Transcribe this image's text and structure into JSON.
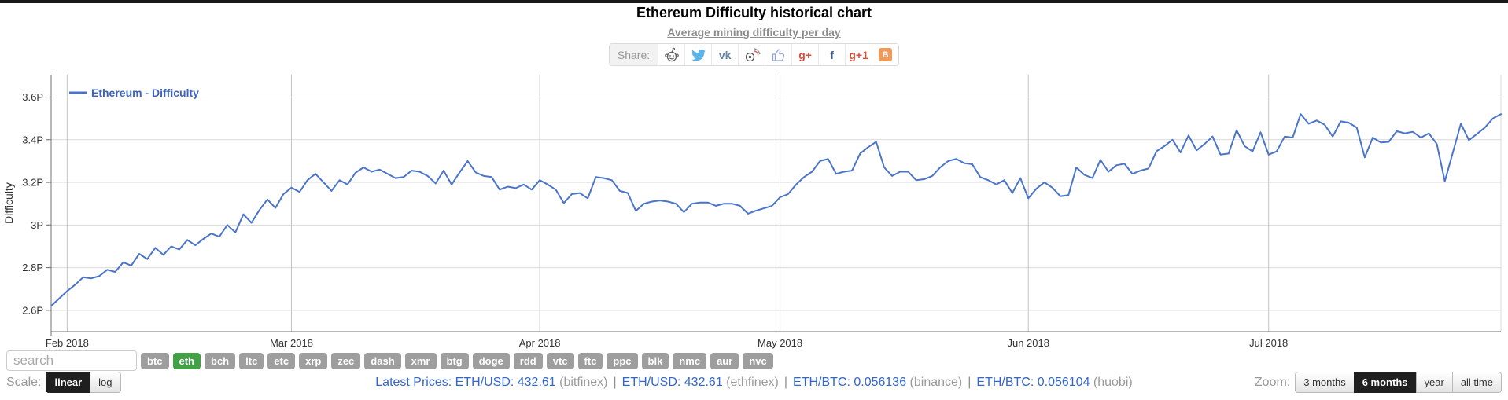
{
  "page": {
    "top_strip_color": "#181818",
    "background": "#ffffff"
  },
  "header": {
    "title": "Ethereum Difficulty historical chart",
    "subtitle": "Average mining difficulty per day"
  },
  "share": {
    "label": "Share:",
    "buttons": [
      {
        "id": "reddit",
        "type": "svg"
      },
      {
        "id": "twitter",
        "type": "svg"
      },
      {
        "id": "vk",
        "type": "text",
        "glyph": "vk",
        "color": "#6383a8"
      },
      {
        "id": "weibo",
        "type": "svg"
      },
      {
        "id": "like",
        "type": "svg"
      },
      {
        "id": "google-plus",
        "type": "text",
        "glyph": "g+",
        "color": "#dd4b39"
      },
      {
        "id": "facebook",
        "type": "text",
        "glyph": "f",
        "color": "#3b5998"
      },
      {
        "id": "google-plus-one",
        "type": "text",
        "glyph": "g+1",
        "color": "#dd4b39"
      },
      {
        "id": "blogger",
        "type": "badge",
        "glyph": "B",
        "color": "#ffffff",
        "bg": "#f09a58"
      }
    ]
  },
  "chart": {
    "legend_label": "Ethereum - Difficulty",
    "line_color": "#4a74c9",
    "legend_color": "#3b63c4",
    "grid_color": "#d9d9d9",
    "month_grid_color": "#c3c3c3",
    "axis_color": "#707070",
    "tick_label_color": "#333333"
  },
  "chart_data": {
    "type": "line",
    "title": "Ethereum Difficulty historical chart",
    "subtitle": "Average mining difficulty per day",
    "xlabel": "",
    "ylabel": "Difficulty",
    "ylim": [
      2.5,
      3.705
    ],
    "yticks": [
      2.6,
      2.8,
      3.0,
      3.2,
      3.4,
      3.6
    ],
    "y_tick_labels": [
      "2.6P",
      "2.8P",
      "3P",
      "3.2P",
      "3.4P",
      "3.6P"
    ],
    "x_unit": "day",
    "x_start_date": "2018-01-30",
    "x_ticks": [
      {
        "index": 2,
        "label": "Feb 2018"
      },
      {
        "index": 30,
        "label": "Mar 2018"
      },
      {
        "index": 61,
        "label": "Apr 2018"
      },
      {
        "index": 91,
        "label": "May 2018"
      },
      {
        "index": 122,
        "label": "Jun 2018"
      },
      {
        "index": 152,
        "label": "Jul 2018"
      }
    ],
    "legend_position": "top-left",
    "grid": true,
    "series": [
      {
        "name": "Ethereum - Difficulty",
        "unit": "P",
        "values": [
          2.62,
          2.655,
          2.69,
          2.72,
          2.755,
          2.75,
          2.76,
          2.79,
          2.78,
          2.825,
          2.81,
          2.865,
          2.84,
          2.893,
          2.86,
          2.9,
          2.885,
          2.93,
          2.905,
          2.935,
          2.96,
          2.945,
          3.0,
          2.965,
          3.05,
          3.01,
          3.07,
          3.12,
          3.08,
          3.145,
          3.175,
          3.155,
          3.21,
          3.24,
          3.2,
          3.16,
          3.21,
          3.19,
          3.245,
          3.27,
          3.25,
          3.26,
          3.24,
          3.22,
          3.225,
          3.255,
          3.25,
          3.23,
          3.195,
          3.255,
          3.19,
          3.247,
          3.3,
          3.247,
          3.23,
          3.225,
          3.166,
          3.18,
          3.173,
          3.19,
          3.166,
          3.21,
          3.19,
          3.166,
          3.103,
          3.145,
          3.15,
          3.125,
          3.225,
          3.22,
          3.21,
          3.16,
          3.15,
          3.066,
          3.1,
          3.11,
          3.115,
          3.11,
          3.1,
          3.06,
          3.1,
          3.105,
          3.105,
          3.09,
          3.1,
          3.1,
          3.09,
          3.053,
          3.067,
          3.078,
          3.09,
          3.13,
          3.145,
          3.19,
          3.225,
          3.25,
          3.3,
          3.31,
          3.24,
          3.25,
          3.255,
          3.335,
          3.365,
          3.39,
          3.27,
          3.23,
          3.25,
          3.25,
          3.21,
          3.215,
          3.23,
          3.27,
          3.3,
          3.31,
          3.29,
          3.285,
          3.225,
          3.21,
          3.19,
          3.21,
          3.15,
          3.22,
          3.125,
          3.17,
          3.2,
          3.175,
          3.135,
          3.14,
          3.27,
          3.235,
          3.22,
          3.305,
          3.25,
          3.28,
          3.287,
          3.24,
          3.255,
          3.265,
          3.346,
          3.37,
          3.4,
          3.34,
          3.42,
          3.35,
          3.38,
          3.415,
          3.33,
          3.335,
          3.445,
          3.37,
          3.345,
          3.435,
          3.33,
          3.345,
          3.415,
          3.41,
          3.52,
          3.475,
          3.49,
          3.47,
          3.415,
          3.486,
          3.48,
          3.457,
          3.317,
          3.41,
          3.387,
          3.39,
          3.44,
          3.43,
          3.437,
          3.41,
          3.43,
          3.38,
          3.205,
          3.34,
          3.475,
          3.398,
          3.427,
          3.457,
          3.5,
          3.52
        ]
      }
    ]
  },
  "coin_filter": {
    "search_placeholder": "search",
    "tag_color": "#9e9e9e",
    "selected_color": "#43a047",
    "tags": [
      {
        "label": "btc",
        "selected": false
      },
      {
        "label": "eth",
        "selected": true
      },
      {
        "label": "bch",
        "selected": false
      },
      {
        "label": "ltc",
        "selected": false
      },
      {
        "label": "etc",
        "selected": false
      },
      {
        "label": "xrp",
        "selected": false
      },
      {
        "label": "zec",
        "selected": false
      },
      {
        "label": "dash",
        "selected": false
      },
      {
        "label": "xmr",
        "selected": false
      },
      {
        "label": "btg",
        "selected": false
      },
      {
        "label": "doge",
        "selected": false
      },
      {
        "label": "rdd",
        "selected": false
      },
      {
        "label": "vtc",
        "selected": false
      },
      {
        "label": "ftc",
        "selected": false
      },
      {
        "label": "ppc",
        "selected": false
      },
      {
        "label": "blk",
        "selected": false
      },
      {
        "label": "nmc",
        "selected": false
      },
      {
        "label": "aur",
        "selected": false
      },
      {
        "label": "nvc",
        "selected": false
      }
    ]
  },
  "scale_control": {
    "label": "Scale:",
    "options": [
      {
        "label": "linear",
        "selected": true
      },
      {
        "label": "log",
        "selected": false
      }
    ]
  },
  "latest_prices": {
    "label": "Latest Prices:",
    "separator": "|",
    "items": [
      {
        "pair": "ETH/USD:",
        "value": "432.61",
        "exchange": "(bitfinex)"
      },
      {
        "pair": "ETH/USD:",
        "value": "432.61",
        "exchange": "(ethfinex)"
      },
      {
        "pair": "ETH/BTC:",
        "value": "0.056136",
        "exchange": "(binance)"
      },
      {
        "pair": "ETH/BTC:",
        "value": "0.056104",
        "exchange": "(huobi)"
      }
    ]
  },
  "zoom_control": {
    "label": "Zoom:",
    "options": [
      {
        "label": "3 months",
        "selected": false
      },
      {
        "label": "6 months",
        "selected": true
      },
      {
        "label": "year",
        "selected": false
      },
      {
        "label": "all time",
        "selected": false
      }
    ]
  }
}
